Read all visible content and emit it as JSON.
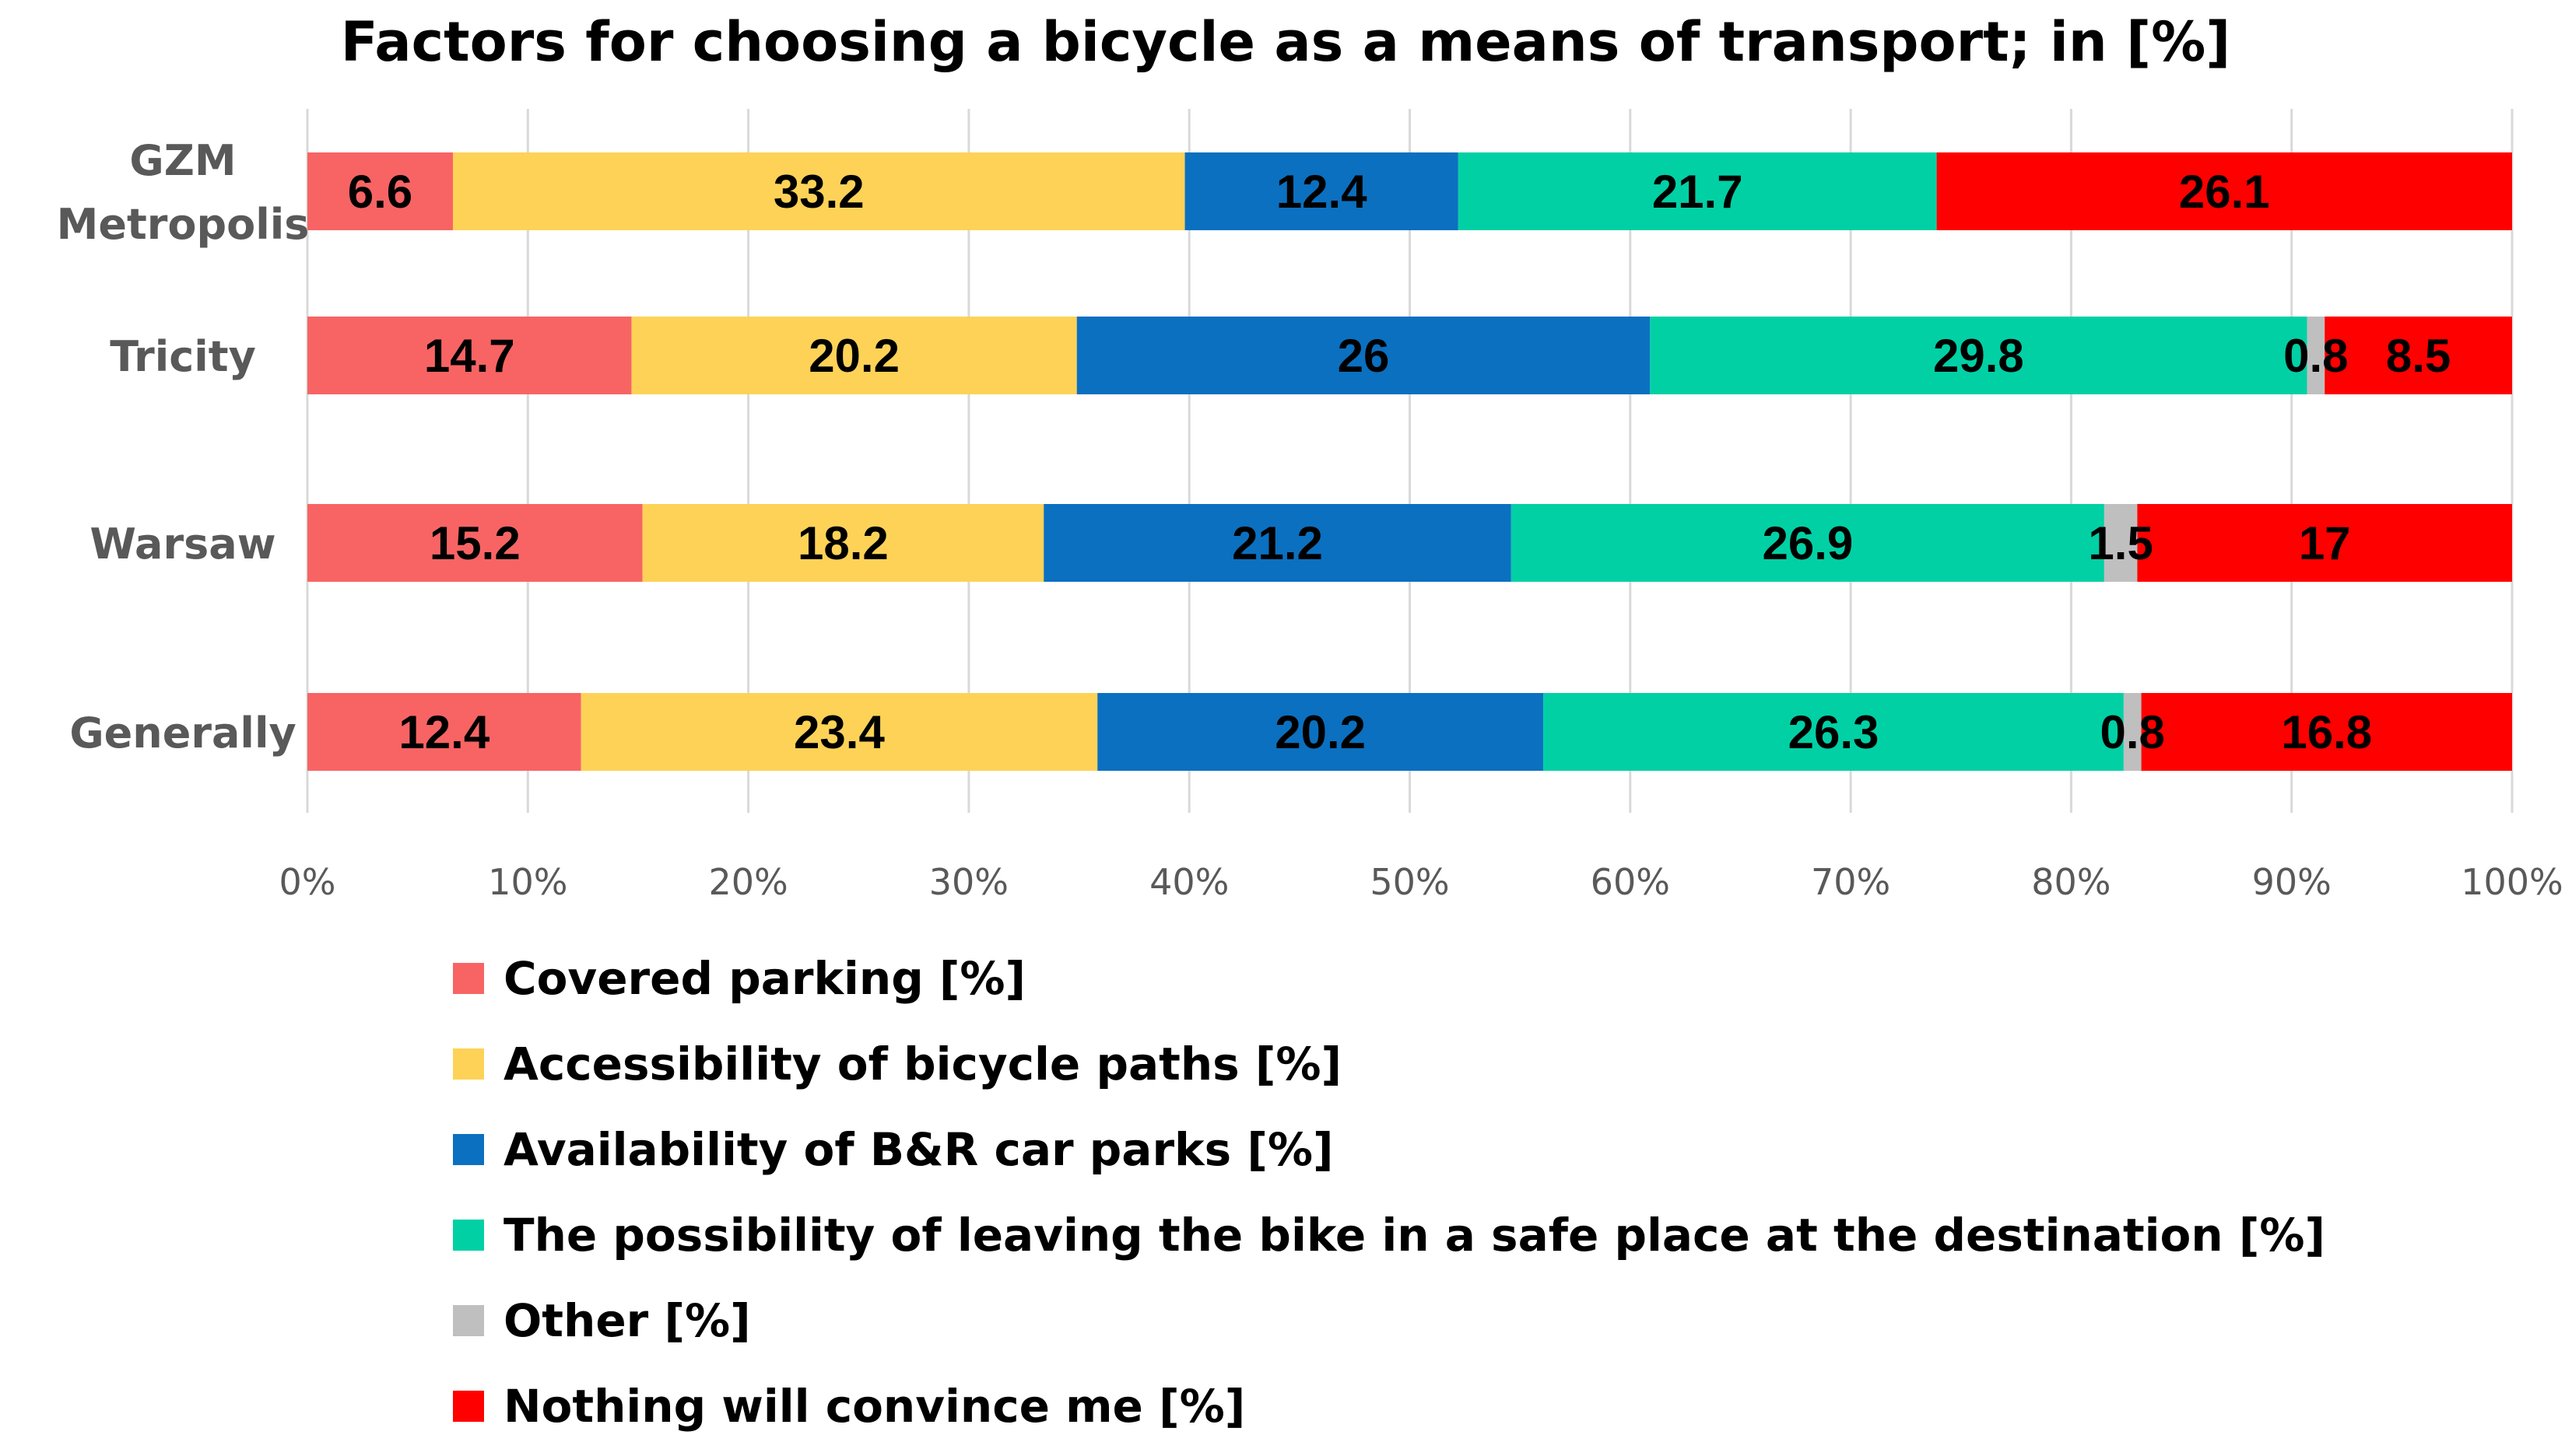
{
  "chart_data": {
    "type": "bar",
    "orientation": "horizontal",
    "stacked": "percent",
    "title": "Factors for choosing a bicycle as a means of transport; in [%]",
    "xlabel": "",
    "ylabel": "",
    "xlim": [
      0,
      100
    ],
    "x_ticks": [
      "0%",
      "10%",
      "20%",
      "30%",
      "40%",
      "50%",
      "60%",
      "70%",
      "80%",
      "90%",
      "100%"
    ],
    "grid": true,
    "legend_position": "bottom",
    "categories": [
      [
        "GZM",
        "Metropolis"
      ],
      [
        "Tricity"
      ],
      [
        "Warsaw"
      ],
      [
        "Generally"
      ]
    ],
    "series": [
      {
        "name": "Covered parking [%]",
        "color": "#f86464",
        "values": [
          6.6,
          14.7,
          15.2,
          12.4
        ],
        "labels": [
          "6.6",
          "14.7",
          "15.2",
          "12.4"
        ]
      },
      {
        "name": "Accessibility of bicycle paths [%]",
        "color": "#fdd257",
        "values": [
          33.2,
          20.2,
          18.2,
          23.4
        ],
        "labels": [
          "33.2",
          "20.2",
          "18.2",
          "23.4"
        ]
      },
      {
        "name": "Availability of B&R car parks [%]",
        "color": "#0b70c0",
        "values": [
          12.4,
          26,
          21.2,
          20.2
        ],
        "labels": [
          "12.4",
          "26",
          "21.2",
          "20.2"
        ]
      },
      {
        "name": "The possibility of leaving the bike in a safe place at the destination [%]",
        "color": "#01d0a5",
        "values": [
          21.7,
          29.8,
          26.9,
          26.3
        ],
        "labels": [
          "21.7",
          "29.8",
          "26.9",
          "26.3"
        ]
      },
      {
        "name": "Other [%]",
        "color": "#bfbfbf",
        "values": [
          0,
          0.8,
          1.5,
          0.8
        ],
        "labels": [
          "",
          "0.8",
          "1.5",
          "0.8"
        ]
      },
      {
        "name": "Nothing will convince me [%]",
        "color": "#fe0000",
        "values": [
          26.1,
          8.5,
          17,
          16.8
        ],
        "labels": [
          "26.1",
          "8.5",
          "17",
          "16.8"
        ]
      }
    ]
  }
}
